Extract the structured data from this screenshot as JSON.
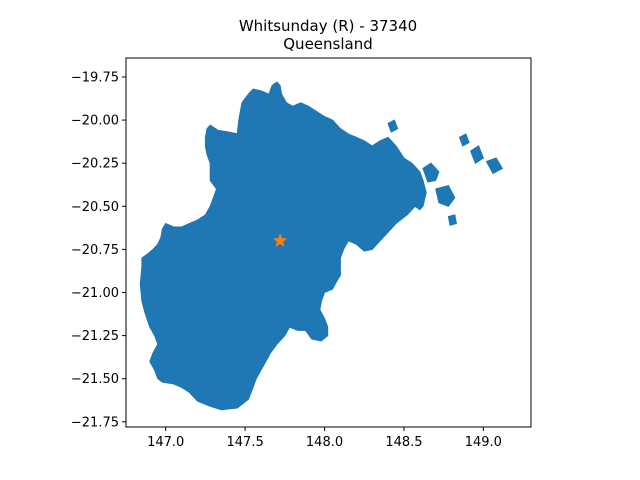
{
  "chart_data": {
    "type": "map",
    "title_lines": [
      "Whitsunday (R) - 37340",
      "Queensland"
    ],
    "xlabel": "",
    "ylabel": "",
    "xlim": [
      146.75,
      149.3
    ],
    "ylim": [
      -21.78,
      -19.64
    ],
    "x_ticks": [
      147.0,
      147.5,
      148.0,
      148.5,
      149.0
    ],
    "x_tick_labels": [
      "147.0",
      "147.5",
      "148.0",
      "148.5",
      "149.0"
    ],
    "y_ticks": [
      -19.75,
      -20.0,
      -20.25,
      -20.5,
      -20.75,
      -21.0,
      -21.25,
      -21.5,
      -21.75
    ],
    "y_tick_labels": [
      "−19.75",
      "−20.00",
      "−20.25",
      "−20.50",
      "−20.75",
      "−21.00",
      "−21.25",
      "−21.50",
      "−21.75"
    ],
    "grid": false,
    "region_color": "#1f77b4",
    "marker_color": "#ff7f0e",
    "marker_shape": "star",
    "marker": {
      "lon": 147.72,
      "lat": -20.7
    },
    "region_outline": [
      [
        146.85,
        -20.8
      ],
      [
        146.88,
        -20.78
      ],
      [
        146.92,
        -20.75
      ],
      [
        146.95,
        -20.72
      ],
      [
        146.97,
        -20.68
      ],
      [
        146.98,
        -20.63
      ],
      [
        147.0,
        -20.6
      ],
      [
        147.05,
        -20.62
      ],
      [
        147.1,
        -20.62
      ],
      [
        147.15,
        -20.6
      ],
      [
        147.2,
        -20.58
      ],
      [
        147.25,
        -20.55
      ],
      [
        147.28,
        -20.5
      ],
      [
        147.3,
        -20.45
      ],
      [
        147.32,
        -20.4
      ],
      [
        147.28,
        -20.35
      ],
      [
        147.28,
        -20.3
      ],
      [
        147.28,
        -20.25
      ],
      [
        147.26,
        -20.2
      ],
      [
        147.25,
        -20.15
      ],
      [
        147.25,
        -20.1
      ],
      [
        147.26,
        -20.05
      ],
      [
        147.28,
        -20.03
      ],
      [
        147.33,
        -20.06
      ],
      [
        147.4,
        -20.07
      ],
      [
        147.45,
        -20.08
      ],
      [
        147.46,
        -20.0
      ],
      [
        147.48,
        -19.9
      ],
      [
        147.52,
        -19.85
      ],
      [
        147.55,
        -19.82
      ],
      [
        147.6,
        -19.83
      ],
      [
        147.65,
        -19.85
      ],
      [
        147.67,
        -19.8
      ],
      [
        147.7,
        -19.78
      ],
      [
        147.72,
        -19.8
      ],
      [
        147.73,
        -19.85
      ],
      [
        147.76,
        -19.9
      ],
      [
        147.8,
        -19.92
      ],
      [
        147.85,
        -19.9
      ],
      [
        147.9,
        -19.92
      ],
      [
        147.95,
        -19.95
      ],
      [
        148.0,
        -19.98
      ],
      [
        148.05,
        -20.0
      ],
      [
        148.1,
        -20.05
      ],
      [
        148.15,
        -20.08
      ],
      [
        148.2,
        -20.1
      ],
      [
        148.25,
        -20.12
      ],
      [
        148.3,
        -20.15
      ],
      [
        148.35,
        -20.12
      ],
      [
        148.4,
        -20.1
      ],
      [
        148.45,
        -20.15
      ],
      [
        148.5,
        -20.22
      ],
      [
        148.55,
        -20.25
      ],
      [
        148.6,
        -20.3
      ],
      [
        148.62,
        -20.35
      ],
      [
        148.64,
        -20.42
      ],
      [
        148.62,
        -20.5
      ],
      [
        148.6,
        -20.52
      ],
      [
        148.57,
        -20.5
      ],
      [
        148.52,
        -20.55
      ],
      [
        148.45,
        -20.6
      ],
      [
        148.4,
        -20.65
      ],
      [
        148.35,
        -20.7
      ],
      [
        148.3,
        -20.75
      ],
      [
        148.25,
        -20.76
      ],
      [
        148.2,
        -20.72
      ],
      [
        148.15,
        -20.7
      ],
      [
        148.12,
        -20.75
      ],
      [
        148.1,
        -20.8
      ],
      [
        148.1,
        -20.9
      ],
      [
        148.08,
        -20.93
      ],
      [
        148.05,
        -20.98
      ],
      [
        148.0,
        -21.0
      ],
      [
        147.98,
        -21.05
      ],
      [
        147.97,
        -21.1
      ],
      [
        148.0,
        -21.15
      ],
      [
        148.02,
        -21.2
      ],
      [
        148.02,
        -21.25
      ],
      [
        147.98,
        -21.28
      ],
      [
        147.92,
        -21.27
      ],
      [
        147.88,
        -21.22
      ],
      [
        147.83,
        -21.22
      ],
      [
        147.78,
        -21.2
      ],
      [
        147.75,
        -21.25
      ],
      [
        147.7,
        -21.3
      ],
      [
        147.66,
        -21.35
      ],
      [
        147.63,
        -21.4
      ],
      [
        147.6,
        -21.45
      ],
      [
        147.57,
        -21.5
      ],
      [
        147.55,
        -21.55
      ],
      [
        147.52,
        -21.62
      ],
      [
        147.45,
        -21.67
      ],
      [
        147.35,
        -21.68
      ],
      [
        147.28,
        -21.66
      ],
      [
        147.2,
        -21.63
      ],
      [
        147.15,
        -21.58
      ],
      [
        147.1,
        -21.55
      ],
      [
        147.05,
        -21.53
      ],
      [
        146.98,
        -21.52
      ],
      [
        146.95,
        -21.5
      ],
      [
        146.93,
        -21.45
      ],
      [
        146.9,
        -21.4
      ],
      [
        146.92,
        -21.35
      ],
      [
        146.95,
        -21.3
      ],
      [
        146.93,
        -21.25
      ],
      [
        146.9,
        -21.2
      ],
      [
        146.87,
        -21.12
      ],
      [
        146.85,
        -21.05
      ],
      [
        146.84,
        -20.95
      ],
      [
        146.85,
        -20.85
      ]
    ],
    "islands": [
      [
        [
          148.62,
          -20.28
        ],
        [
          148.67,
          -20.25
        ],
        [
          148.72,
          -20.3
        ],
        [
          148.7,
          -20.35
        ],
        [
          148.65,
          -20.36
        ]
      ],
      [
        [
          148.7,
          -20.4
        ],
        [
          148.78,
          -20.38
        ],
        [
          148.82,
          -20.45
        ],
        [
          148.78,
          -20.5
        ],
        [
          148.72,
          -20.48
        ]
      ],
      [
        [
          148.85,
          -20.1
        ],
        [
          148.89,
          -20.08
        ],
        [
          148.91,
          -20.13
        ],
        [
          148.87,
          -20.15
        ]
      ],
      [
        [
          148.92,
          -20.18
        ],
        [
          148.97,
          -20.15
        ],
        [
          149.0,
          -20.22
        ],
        [
          148.95,
          -20.25
        ]
      ],
      [
        [
          149.02,
          -20.24
        ],
        [
          149.08,
          -20.22
        ],
        [
          149.12,
          -20.28
        ],
        [
          149.06,
          -20.31
        ]
      ],
      [
        [
          148.4,
          -20.02
        ],
        [
          148.44,
          -20.0
        ],
        [
          148.46,
          -20.05
        ],
        [
          148.42,
          -20.07
        ]
      ],
      [
        [
          148.78,
          -20.56
        ],
        [
          148.82,
          -20.55
        ],
        [
          148.83,
          -20.6
        ],
        [
          148.79,
          -20.61
        ]
      ]
    ]
  }
}
